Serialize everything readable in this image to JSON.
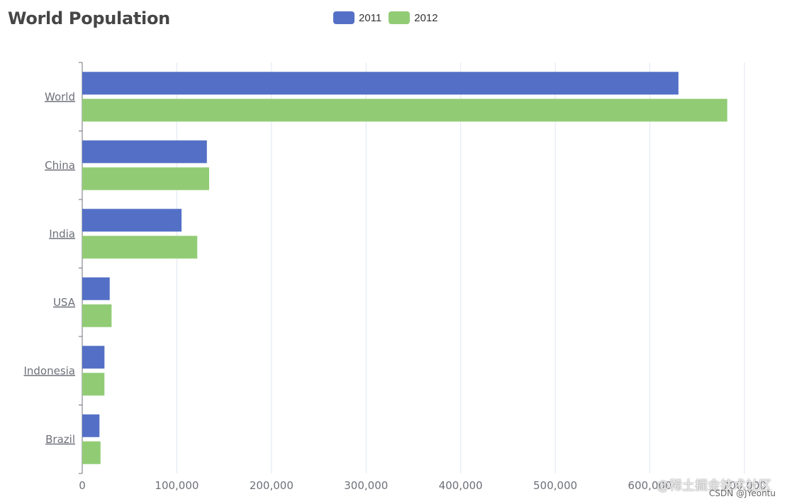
{
  "chart_data": {
    "type": "bar",
    "orientation": "horizontal",
    "title": "World Population",
    "categories": [
      "World",
      "China",
      "India",
      "USA",
      "Indonesia",
      "Brazil"
    ],
    "series": [
      {
        "name": "2011",
        "color": "#5470c6",
        "values": [
          630230,
          131744,
          104970,
          29034,
          23489,
          18203
        ]
      },
      {
        "name": "2012",
        "color": "#91cc75",
        "values": [
          681807,
          134141,
          121594,
          31000,
          23438,
          19325
        ]
      }
    ],
    "xaxis": {
      "min": 0,
      "max": 700000,
      "ticks": [
        0,
        100000,
        200000,
        300000,
        400000,
        500000,
        600000,
        700000
      ],
      "tick_labels": [
        "0",
        "100,000",
        "200,000",
        "300,000",
        "400,000",
        "500,000",
        "600,000",
        "700,000"
      ]
    },
    "grid": "vertical",
    "legend_position": "top-center"
  },
  "watermark": {
    "line1": "@稀土掘金技术社区",
    "line2": "CSDN @JYeontu"
  }
}
